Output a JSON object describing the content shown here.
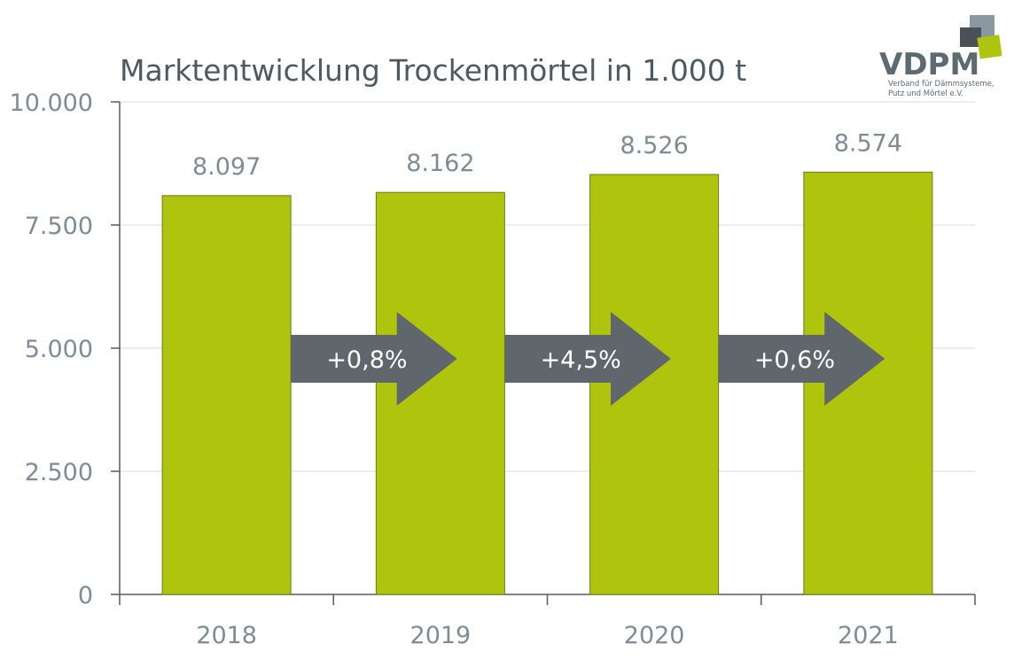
{
  "chart_data": {
    "type": "bar",
    "title": "Marktentwicklung Trockenmörtel in 1.000 t",
    "categories": [
      "2018",
      "2019",
      "2020",
      "2021"
    ],
    "values": [
      8097,
      8162,
      8526,
      8574
    ],
    "value_labels": [
      "8.097",
      "8.162",
      "8.526",
      "8.574"
    ],
    "ylim": [
      0,
      10000
    ],
    "yticks": [
      0,
      2500,
      5000,
      7500,
      10000
    ],
    "ytick_labels": [
      "0",
      "2.500",
      "5.000",
      "7.500",
      "10.000"
    ],
    "grid": true,
    "changes": [
      "+0,8%",
      "+4,5%",
      "+0,6%"
    ],
    "colors": {
      "bar": "#aec40d",
      "bar_stroke": "#6e7b16",
      "arrow": "#5f676d",
      "grid": "#d9dcde",
      "axis": "#555b5f"
    }
  },
  "logo": {
    "name": "VDPM",
    "subtitle_line1": "Verband für Dämmsysteme,",
    "subtitle_line2": "Putz und Mörtel e.V."
  }
}
